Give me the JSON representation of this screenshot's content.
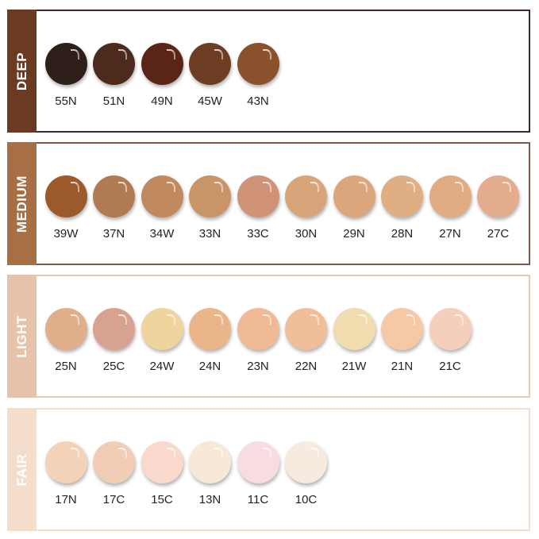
{
  "sections": [
    {
      "name": "DEEP",
      "bar_color": "#6b3a22",
      "border_color": "#3a2a22",
      "shades": [
        {
          "label": "55N",
          "color": "#2e1f1a"
        },
        {
          "label": "51N",
          "color": "#4e2a1c"
        },
        {
          "label": "49N",
          "color": "#5a2516"
        },
        {
          "label": "45W",
          "color": "#6c3d22"
        },
        {
          "label": "43N",
          "color": "#8a522c"
        }
      ]
    },
    {
      "name": "MEDIUM",
      "bar_color": "#a86f45",
      "border_color": "#7a5a44",
      "shades": [
        {
          "label": "39W",
          "color": "#9c5a2c"
        },
        {
          "label": "37N",
          "color": "#b07a52"
        },
        {
          "label": "34W",
          "color": "#c08a5e"
        },
        {
          "label": "33N",
          "color": "#c99466"
        },
        {
          "label": "33C",
          "color": "#d09377"
        },
        {
          "label": "30N",
          "color": "#d8a57a"
        },
        {
          "label": "29N",
          "color": "#dca67c"
        },
        {
          "label": "28N",
          "color": "#dfae82"
        },
        {
          "label": "27N",
          "color": "#e0ac82"
        },
        {
          "label": "27C",
          "color": "#e3ac8c"
        }
      ]
    },
    {
      "name": "LIGHT",
      "bar_color": "#e8c3ac",
      "border_color": "#e4cdb9",
      "shades": [
        {
          "label": "25N",
          "color": "#dfae8a"
        },
        {
          "label": "25C",
          "color": "#d8a290"
        },
        {
          "label": "24W",
          "color": "#f0d49e"
        },
        {
          "label": "24N",
          "color": "#eab588"
        },
        {
          "label": "23N",
          "color": "#efba94"
        },
        {
          "label": "22N",
          "color": "#f0bf9a"
        },
        {
          "label": "21W",
          "color": "#f0dcae"
        },
        {
          "label": "21N",
          "color": "#f5c8a6"
        },
        {
          "label": "21C",
          "color": "#f6cfbc"
        }
      ]
    },
    {
      "name": "FAIR",
      "bar_color": "#f5ddcc",
      "border_color": "#efe0d0",
      "shades": [
        {
          "label": "17N",
          "color": "#f4d2b8"
        },
        {
          "label": "17C",
          "color": "#f1cdb6"
        },
        {
          "label": "15C",
          "color": "#f8d9cc"
        },
        {
          "label": "13N",
          "color": "#f6ead6"
        },
        {
          "label": "11C",
          "color": "#f7dde0"
        },
        {
          "label": "10C",
          "color": "#f7ebe0"
        }
      ]
    }
  ]
}
